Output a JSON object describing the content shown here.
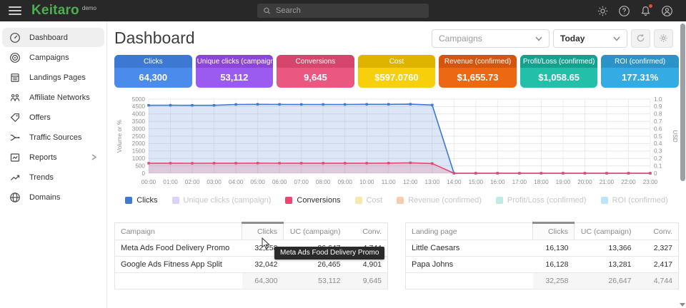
{
  "topbar": {
    "brand": "Keitaro",
    "brand_badge": "demo",
    "search_placeholder": "Search",
    "icons": [
      "menu-icon",
      "search-icon",
      "settings-gear-icon",
      "help-icon",
      "notifications-bell-icon",
      "user-account-icon"
    ],
    "notification_dot_color": "#e64a3c",
    "brand_color": "#4caf50"
  },
  "sidebar": {
    "items": [
      {
        "label": "Dashboard",
        "icon": "gauge-icon",
        "active": true,
        "has_chevron": false
      },
      {
        "label": "Campaigns",
        "icon": "target-icon",
        "active": false,
        "has_chevron": false
      },
      {
        "label": "Landings Pages",
        "icon": "document-icon",
        "active": false,
        "has_chevron": false
      },
      {
        "label": "Affiliate Networks",
        "icon": "people-icon",
        "active": false,
        "has_chevron": false
      },
      {
        "label": "Offers",
        "icon": "tag-icon",
        "active": false,
        "has_chevron": false
      },
      {
        "label": "Traffic Sources",
        "icon": "split-arrows-icon",
        "active": false,
        "has_chevron": false
      },
      {
        "label": "Reports",
        "icon": "report-chart-icon",
        "active": false,
        "has_chevron": true
      },
      {
        "label": "Trends",
        "icon": "trend-up-icon",
        "active": false,
        "has_chevron": false
      },
      {
        "label": "Domains",
        "icon": "globe-icon",
        "active": false,
        "has_chevron": false
      }
    ]
  },
  "header": {
    "title": "Dashboard",
    "campaign_filter_value": "Campaigns",
    "date_filter_value": "Today",
    "buttons": [
      "refresh-icon",
      "widget-settings-gear-icon"
    ]
  },
  "cards": [
    {
      "label": "Clicks",
      "value": "64,300",
      "header_color": "#3d79d2",
      "body_color": "#4a8beb"
    },
    {
      "label": "Unique clicks (campaign)",
      "value": "53,112",
      "header_color": "#8b46d9",
      "body_color": "#9c5bf0"
    },
    {
      "label": "Conversions",
      "value": "9,645",
      "header_color": "#d6456c",
      "body_color": "#ea5780"
    },
    {
      "label": "Cost",
      "value": "$597.0760",
      "header_color": "#dfb400",
      "body_color": "#f7cf0a"
    },
    {
      "label": "Revenue (confirmed)",
      "value": "$1,655.73",
      "header_color": "#d4560e",
      "body_color": "#ec6812"
    },
    {
      "label": "Profit/Loss (confirmed)",
      "value": "$1,058.65",
      "header_color": "#14a28f",
      "body_color": "#22bfa9"
    },
    {
      "label": "ROI (confirmed)",
      "value": "177.31%",
      "header_color": "#2b93c7",
      "body_color": "#35abe3"
    }
  ],
  "chart_data": {
    "type": "line",
    "x": [
      "00:00",
      "01:00",
      "02:00",
      "03:00",
      "04:00",
      "05:00",
      "06:00",
      "07:00",
      "08:00",
      "09:00",
      "10:00",
      "11:00",
      "12:00",
      "13:00",
      "14:00",
      "15:00",
      "16:00",
      "17:00",
      "18:00",
      "19:00",
      "20:00",
      "21:00",
      "22:00",
      "23:00"
    ],
    "left_axis": {
      "label": "Volume or %",
      "range": [
        0,
        5000
      ],
      "step": 500
    },
    "right_axis": {
      "label": "USD",
      "range": [
        0,
        1.0
      ],
      "step": 0.1
    },
    "grid": true,
    "legend_position": "bottom",
    "series": [
      {
        "name": "Clicks",
        "color": "#3e7ad2",
        "fill": "rgba(98,141,216,0.22)",
        "active": true,
        "values": [
          4580,
          4585,
          4580,
          4580,
          4640,
          4650,
          4645,
          4640,
          4640,
          4640,
          4650,
          4650,
          4660,
          4600,
          0,
          0,
          0,
          0,
          0,
          0,
          0,
          0,
          0,
          0
        ]
      },
      {
        "name": "Unique clicks (campaign)",
        "color": "#dcd2f7",
        "active": false,
        "values": []
      },
      {
        "name": "Conversions",
        "color": "#e54871",
        "fill": "rgba(229,72,113,0.18)",
        "active": true,
        "values": [
          680,
          680,
          675,
          680,
          680,
          685,
          680,
          680,
          680,
          680,
          680,
          685,
          700,
          660,
          0,
          0,
          0,
          0,
          0,
          0,
          0,
          0,
          0,
          0
        ]
      },
      {
        "name": "Cost",
        "color": "#f6e8ae",
        "active": false,
        "values": []
      },
      {
        "name": "Revenue (confirmed)",
        "color": "#f7cdaf",
        "active": false,
        "values": []
      },
      {
        "name": "Profit/Loss (confirmed)",
        "color": "#c2eae2",
        "active": false,
        "values": []
      },
      {
        "name": "ROI (confirmed)",
        "color": "#bce5f8",
        "active": false,
        "values": []
      }
    ]
  },
  "tables": [
    {
      "name_header": "Campaign",
      "columns": [
        "Clicks",
        "UC (campaign)",
        "Conv."
      ],
      "sorted_column": "Clicks",
      "rows": [
        {
          "name": "Meta Ads Food Delivery Promo",
          "values": [
            "32,258",
            "26,647",
            "4,744"
          ]
        },
        {
          "name": "Google Ads Fitness App Split",
          "values": [
            "32,042",
            "26,465",
            "4,901"
          ]
        }
      ],
      "totals": [
        "64,300",
        "53,112",
        "9,645"
      ]
    },
    {
      "name_header": "Landing page",
      "columns": [
        "Clicks",
        "UC (campaign)",
        "Conv."
      ],
      "sorted_column": "Clicks",
      "rows": [
        {
          "name": "Little Caesars",
          "values": [
            "16,130",
            "13,366",
            "2,327"
          ]
        },
        {
          "name": "Papa Johns",
          "values": [
            "16,128",
            "13,281",
            "2,417"
          ]
        }
      ],
      "totals": [
        "32,258",
        "26,647",
        "4,744"
      ]
    }
  ],
  "tooltip": {
    "text": "Meta Ads Food Delivery Promo"
  }
}
